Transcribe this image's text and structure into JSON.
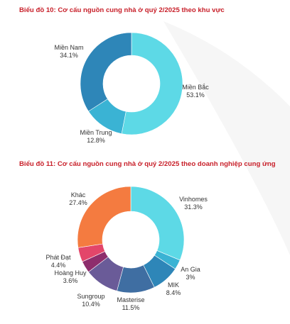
{
  "charts": [
    {
      "title": "Biểu đồ 10: Cơ cấu nguồn cung nhà ở quý 2/2025 theo khu vực",
      "chart_data": {
        "type": "pie",
        "variant": "donut",
        "slices": [
          {
            "label": "Miền Bắc",
            "value": 53.1,
            "display": "53.1%",
            "color": "#5dd9e6"
          },
          {
            "label": "Miền Trung",
            "value": 12.8,
            "display": "12.8%",
            "color": "#3ab3d4"
          },
          {
            "label": "Miền Nam",
            "value": 34.1,
            "display": "34.1%",
            "color": "#2e86b8"
          }
        ]
      }
    },
    {
      "title": "Biểu đồ 11: Cơ cấu nguồn cung nhà ở quý 2/2025 theo doanh nghiệp cung ứng",
      "chart_data": {
        "type": "pie",
        "variant": "donut",
        "slices": [
          {
            "label": "Vinhomes",
            "value": 31.3,
            "display": "31.3%",
            "color": "#5dd9e6"
          },
          {
            "label": "An Gia",
            "value": 3,
            "display": "3%",
            "color": "#3ab3d4"
          },
          {
            "label": "MIK",
            "value": 8.4,
            "display": "8.4%",
            "color": "#2e86b8"
          },
          {
            "label": "Masterise",
            "value": 11.5,
            "display": "11.5%",
            "color": "#3f6ea2"
          },
          {
            "label": "Sungroup",
            "value": 10.4,
            "display": "10.4%",
            "color": "#6a5b98"
          },
          {
            "label": "Hoàng Huy",
            "value": 3.6,
            "display": "3.6%",
            "color": "#8e2d6c"
          },
          {
            "label": "Phát Đạt",
            "value": 4.4,
            "display": "4.4%",
            "color": "#e3466a"
          },
          {
            "label": "Khác",
            "value": 27.4,
            "display": "27.4%",
            "color": "#f47b40"
          }
        ]
      }
    }
  ]
}
